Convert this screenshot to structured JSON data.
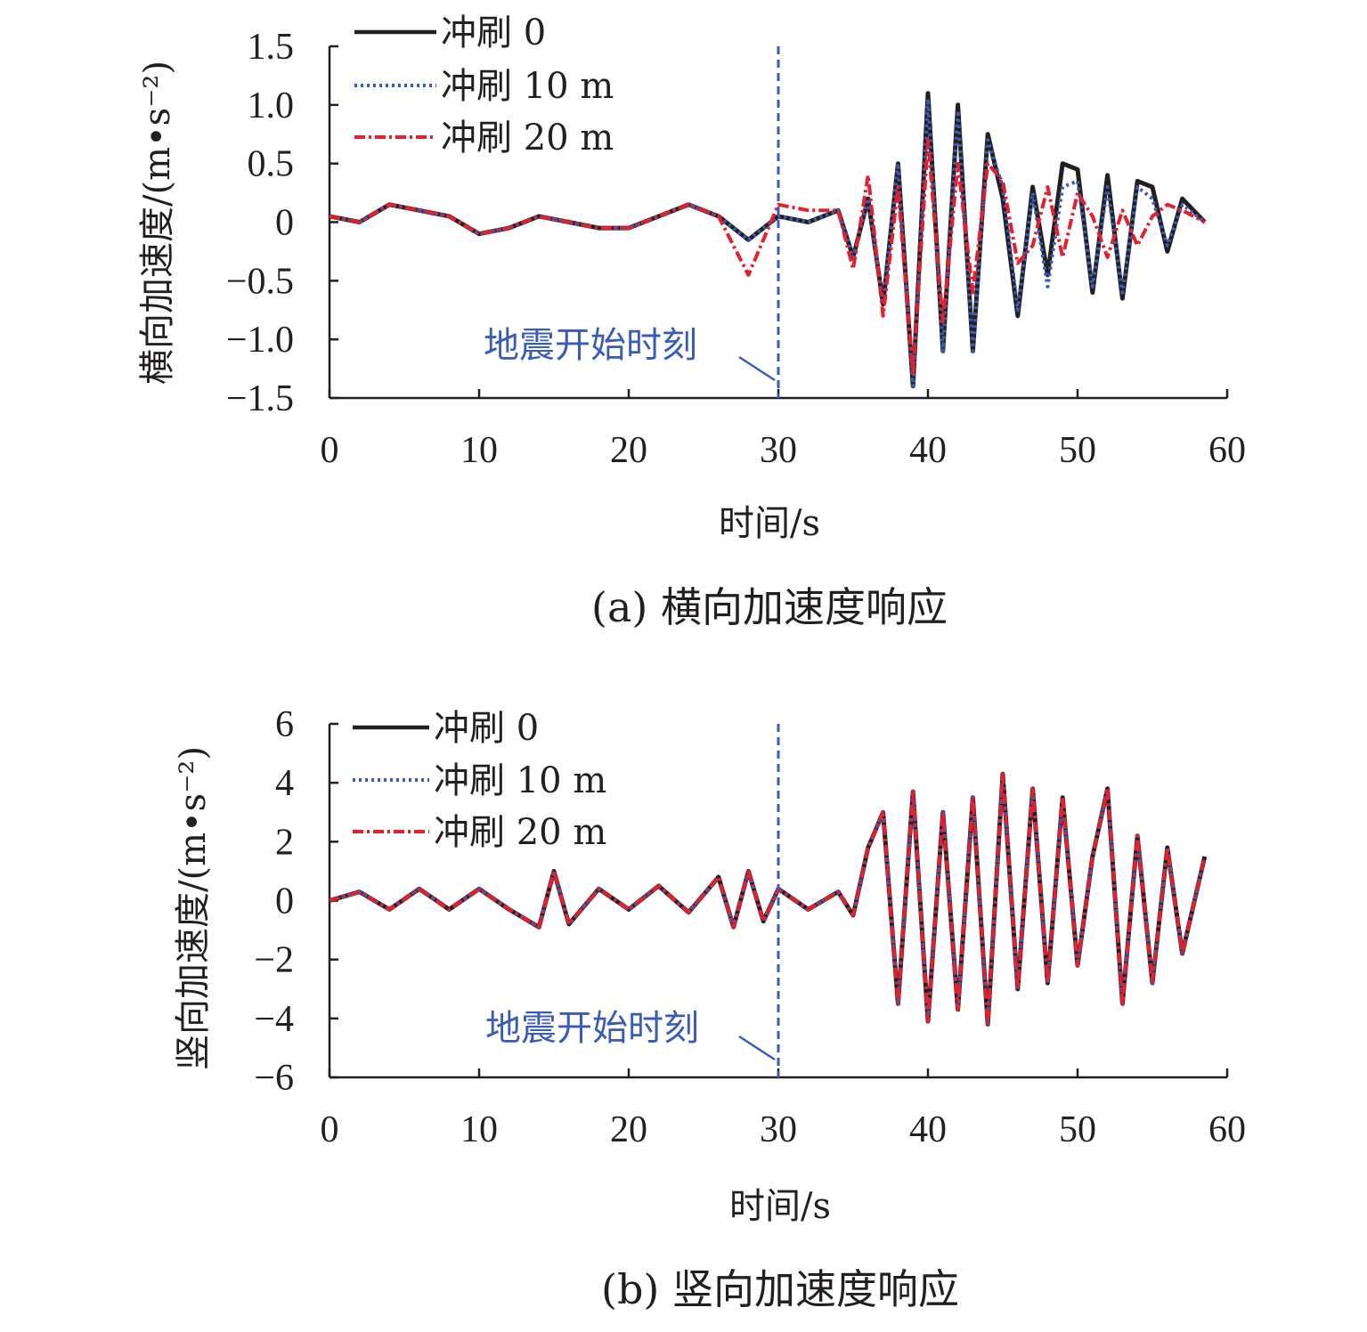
{
  "colors": {
    "series0": "#231f20",
    "series10": "#3a5bb8",
    "series20": "#e5202e",
    "annotation": "#3a5bb8"
  },
  "chart_data": [
    {
      "type": "line",
      "caption": "(a) 横向加速度响应",
      "xlabel": "时间/s",
      "ylabel": "横向加速度/(m•s⁻²)",
      "xlim": [
        0,
        60
      ],
      "ylim": [
        -1.5,
        1.5
      ],
      "xticks": [
        "0",
        "10",
        "20",
        "30",
        "40",
        "50",
        "60"
      ],
      "yticks": [
        "1.5",
        "1.0",
        "0.5",
        "0",
        "−0.5",
        "−1.0",
        "−1.5"
      ],
      "ytick_values": [
        1.5,
        1.0,
        0.5,
        0,
        -0.5,
        -1.0,
        -1.5
      ],
      "legend_position": "top-left",
      "annotation": {
        "text": "地震开始时刻",
        "x": 30
      },
      "series": [
        {
          "name": "冲刷 0",
          "style": "solid",
          "x": [
            0,
            2,
            4,
            6,
            8,
            10,
            12,
            14,
            16,
            18,
            20,
            22,
            24,
            26,
            28,
            30,
            32,
            34,
            35,
            36,
            37,
            38,
            39,
            40,
            41,
            42,
            43,
            44,
            45,
            46,
            47,
            48,
            49,
            50,
            51,
            52,
            53,
            54,
            55,
            56,
            57,
            58.5
          ],
          "y": [
            0.05,
            0.0,
            0.15,
            0.1,
            0.05,
            -0.1,
            -0.05,
            0.05,
            0.0,
            -0.05,
            -0.05,
            0.05,
            0.15,
            0.05,
            -0.15,
            0.05,
            0.0,
            0.1,
            -0.3,
            0.2,
            -0.7,
            0.5,
            -1.4,
            1.1,
            -1.1,
            1.0,
            -1.1,
            0.75,
            0.2,
            -0.8,
            0.3,
            -0.45,
            0.5,
            0.45,
            -0.6,
            0.4,
            -0.65,
            0.35,
            0.3,
            -0.25,
            0.2,
            0.0
          ]
        },
        {
          "name": "冲刷 10 m",
          "style": "dotted",
          "x": [
            0,
            2,
            4,
            6,
            8,
            10,
            12,
            14,
            16,
            18,
            20,
            22,
            24,
            26,
            28,
            30,
            32,
            34,
            35,
            36,
            37,
            38,
            39,
            40,
            41,
            42,
            43,
            44,
            45,
            46,
            47,
            48,
            49,
            50,
            51,
            52,
            53,
            54,
            55,
            56,
            57,
            58.5
          ],
          "y": [
            0.05,
            0.0,
            0.15,
            0.1,
            0.05,
            -0.1,
            -0.05,
            0.05,
            0.0,
            -0.05,
            -0.05,
            0.05,
            0.15,
            0.05,
            -0.15,
            0.05,
            0.0,
            0.1,
            -0.3,
            0.2,
            -0.7,
            0.5,
            -1.4,
            1.05,
            -1.1,
            0.95,
            -1.1,
            0.7,
            0.3,
            -0.75,
            0.25,
            -0.55,
            0.3,
            0.35,
            -0.55,
            0.3,
            -0.6,
            0.3,
            0.2,
            -0.2,
            0.15,
            0.0
          ]
        },
        {
          "name": "冲刷 20 m",
          "style": "dashdot",
          "x": [
            0,
            2,
            4,
            6,
            8,
            10,
            12,
            14,
            16,
            18,
            20,
            22,
            24,
            26,
            28,
            30,
            32,
            34,
            35,
            36,
            37,
            38,
            39,
            40,
            41,
            42,
            43,
            44,
            45,
            46,
            47,
            48,
            49,
            50,
            51,
            52,
            53,
            54,
            55,
            56,
            57,
            58.5
          ],
          "y": [
            0.05,
            0.0,
            0.15,
            0.1,
            0.05,
            -0.1,
            -0.05,
            0.05,
            0.0,
            -0.05,
            -0.05,
            0.05,
            0.15,
            0.05,
            -0.45,
            0.15,
            0.1,
            0.1,
            -0.4,
            0.4,
            -0.8,
            0.3,
            -1.3,
            0.7,
            -0.85,
            0.5,
            -0.6,
            0.5,
            0.35,
            -0.35,
            -0.2,
            0.3,
            -0.3,
            0.25,
            0.05,
            -0.3,
            0.1,
            -0.2,
            0.05,
            0.15,
            0.1,
            0.0
          ]
        }
      ]
    },
    {
      "type": "line",
      "caption": "(b) 竖向加速度响应",
      "xlabel": "时间/s",
      "ylabel": "竖向加速度/(m•s⁻²)",
      "xlim": [
        0,
        60
      ],
      "ylim": [
        -6,
        6
      ],
      "xticks": [
        "0",
        "10",
        "20",
        "30",
        "40",
        "50",
        "60"
      ],
      "yticks": [
        "6",
        "4",
        "2",
        "0",
        "−2",
        "−4",
        "−6"
      ],
      "ytick_values": [
        6,
        4,
        2,
        0,
        -2,
        -4,
        -6
      ],
      "legend_position": "top-left",
      "annotation": {
        "text": "地震开始时刻",
        "x": 30
      },
      "series": [
        {
          "name": "冲刷 0",
          "style": "solid",
          "x": [
            0,
            2,
            4,
            6,
            8,
            10,
            12,
            14,
            15,
            16,
            18,
            20,
            22,
            24,
            26,
            27,
            28,
            29,
            30,
            32,
            34,
            35,
            36,
            37,
            38,
            39,
            40,
            41,
            42,
            43,
            44,
            45,
            46,
            47,
            48,
            49,
            50,
            51,
            52,
            53,
            54,
            55,
            56,
            57,
            58.5
          ],
          "y": [
            0.0,
            0.3,
            -0.3,
            0.4,
            -0.3,
            0.4,
            -0.3,
            -0.9,
            1.0,
            -0.8,
            0.4,
            -0.3,
            0.5,
            -0.4,
            0.8,
            -0.9,
            1.0,
            -0.7,
            0.4,
            -0.3,
            0.3,
            -0.5,
            1.8,
            3.0,
            -3.5,
            3.7,
            -4.1,
            3.0,
            -3.7,
            3.5,
            -4.2,
            4.3,
            -3.0,
            3.8,
            -2.8,
            3.5,
            -2.2,
            1.5,
            3.8,
            -3.5,
            2.2,
            -2.8,
            1.8,
            -1.8,
            1.5
          ]
        },
        {
          "name": "冲刷 10 m",
          "style": "dotted",
          "x": [
            0,
            2,
            4,
            6,
            8,
            10,
            12,
            14,
            15,
            16,
            18,
            20,
            22,
            24,
            26,
            27,
            28,
            29,
            30,
            32,
            34,
            35,
            36,
            37,
            38,
            39,
            40,
            41,
            42,
            43,
            44,
            45,
            46,
            47,
            48,
            49,
            50,
            51,
            52,
            53,
            54,
            55,
            56,
            57,
            58.5
          ],
          "y": [
            0.0,
            0.3,
            -0.3,
            0.4,
            -0.3,
            0.4,
            -0.3,
            -0.9,
            1.0,
            -0.8,
            0.4,
            -0.3,
            0.5,
            -0.4,
            0.8,
            -0.9,
            1.0,
            -0.7,
            0.4,
            -0.3,
            0.3,
            -0.5,
            1.8,
            3.0,
            -3.5,
            3.7,
            -4.1,
            3.0,
            -3.7,
            3.5,
            -4.2,
            4.3,
            -3.0,
            3.8,
            -2.8,
            3.5,
            -2.2,
            1.5,
            3.8,
            -3.5,
            2.2,
            -2.8,
            1.8,
            -1.8,
            1.5
          ]
        },
        {
          "name": "冲刷 20 m",
          "style": "dashdot",
          "x": [
            0,
            2,
            4,
            6,
            8,
            10,
            12,
            14,
            15,
            16,
            18,
            20,
            22,
            24,
            26,
            27,
            28,
            29,
            30,
            32,
            34,
            35,
            36,
            37,
            38,
            39,
            40,
            41,
            42,
            43,
            44,
            45,
            46,
            47,
            48,
            49,
            50,
            51,
            52,
            53,
            54,
            55,
            56,
            57,
            58.5
          ],
          "y": [
            0.0,
            0.3,
            -0.3,
            0.4,
            -0.3,
            0.4,
            -0.3,
            -0.9,
            1.0,
            -0.8,
            0.4,
            -0.3,
            0.5,
            -0.4,
            0.8,
            -0.9,
            1.0,
            -0.7,
            0.4,
            -0.3,
            0.3,
            -0.5,
            1.8,
            3.0,
            -3.5,
            3.7,
            -4.1,
            3.0,
            -3.7,
            3.5,
            -4.2,
            4.3,
            -3.0,
            3.8,
            -2.8,
            3.5,
            -2.2,
            1.5,
            3.8,
            -3.5,
            2.2,
            -2.8,
            1.8,
            -1.8,
            1.5
          ]
        }
      ]
    }
  ]
}
